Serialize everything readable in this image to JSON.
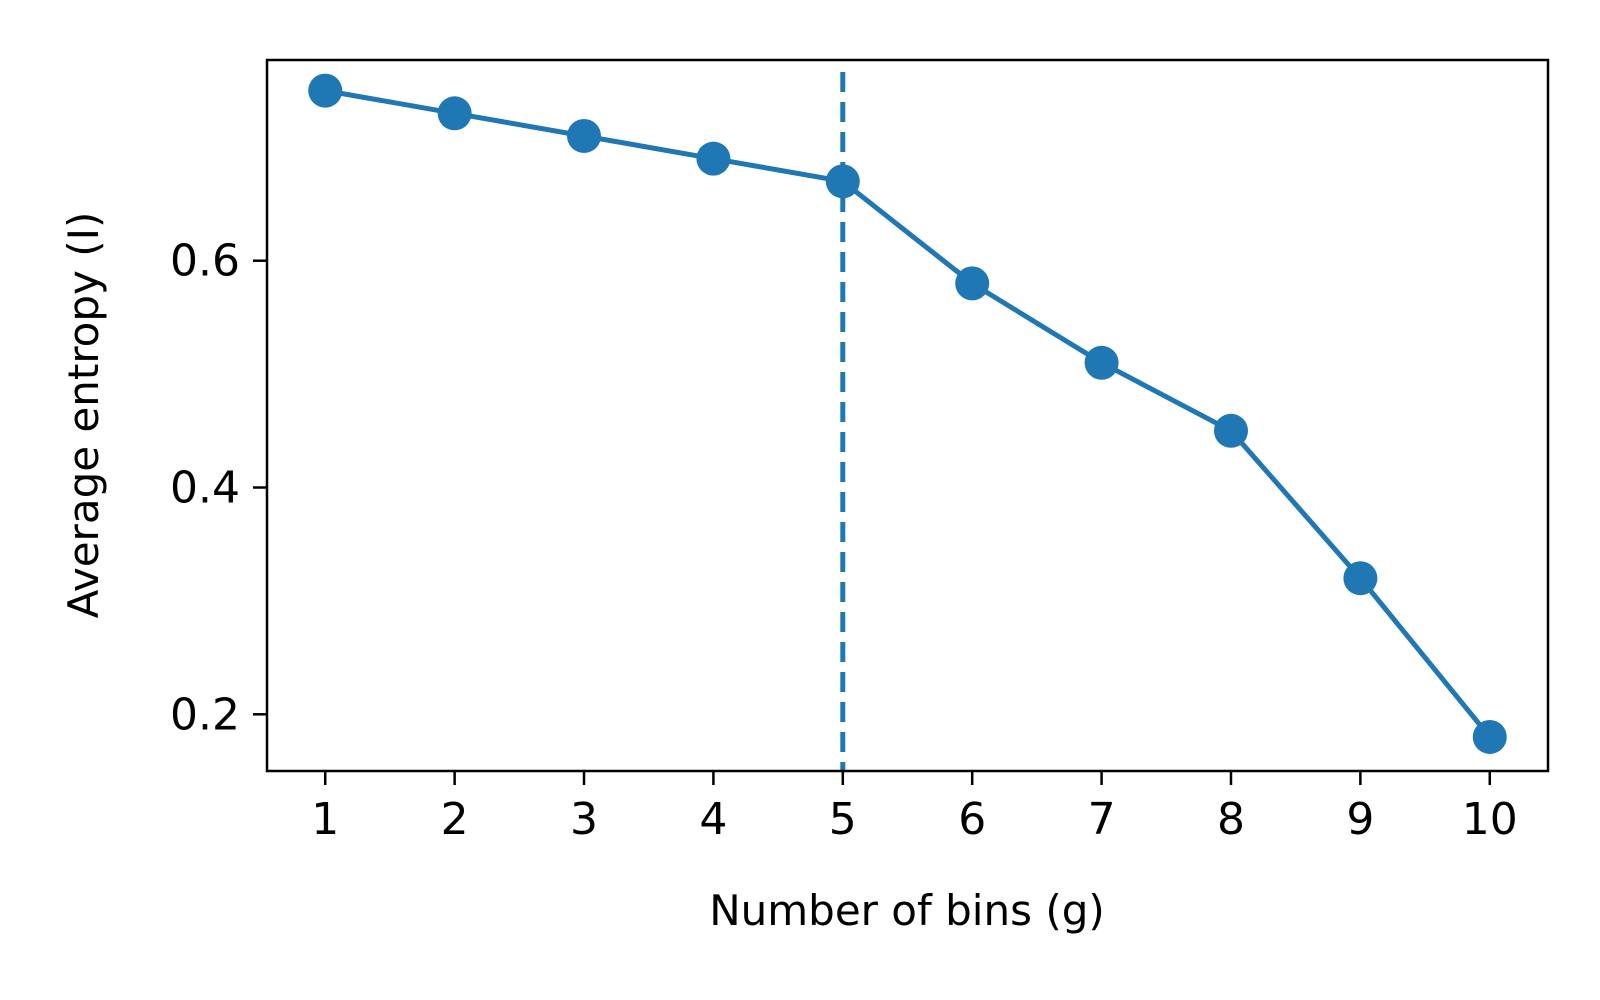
{
  "chart_data": {
    "type": "line",
    "title": "",
    "xlabel": "Number of bins (g)",
    "ylabel": "Average entropy (I)",
    "x": [
      1,
      2,
      3,
      4,
      5,
      6,
      7,
      8,
      9,
      10
    ],
    "series": [
      {
        "values": [
          0.75,
          0.73,
          0.71,
          0.69,
          0.67,
          0.58,
          0.51,
          0.45,
          0.32,
          0.18
        ],
        "color": "#1f77b4",
        "marker": "circle"
      }
    ],
    "xlim": [
      0.55,
      10.45
    ],
    "ylim": [
      0.15,
      0.777
    ],
    "xticks": [
      1,
      2,
      3,
      4,
      5,
      6,
      7,
      8,
      9,
      10
    ],
    "xtick_labels": [
      "1",
      "2",
      "3",
      "4",
      "5",
      "6",
      "7",
      "8",
      "9",
      "10"
    ],
    "yticks": [
      0.2,
      0.4,
      0.6
    ],
    "ytick_labels": [
      "0.2",
      "0.4",
      "0.6"
    ],
    "vline": {
      "x": 5,
      "style": "dashed",
      "color": "#1f77b4"
    },
    "grid": false,
    "legend": "none"
  }
}
